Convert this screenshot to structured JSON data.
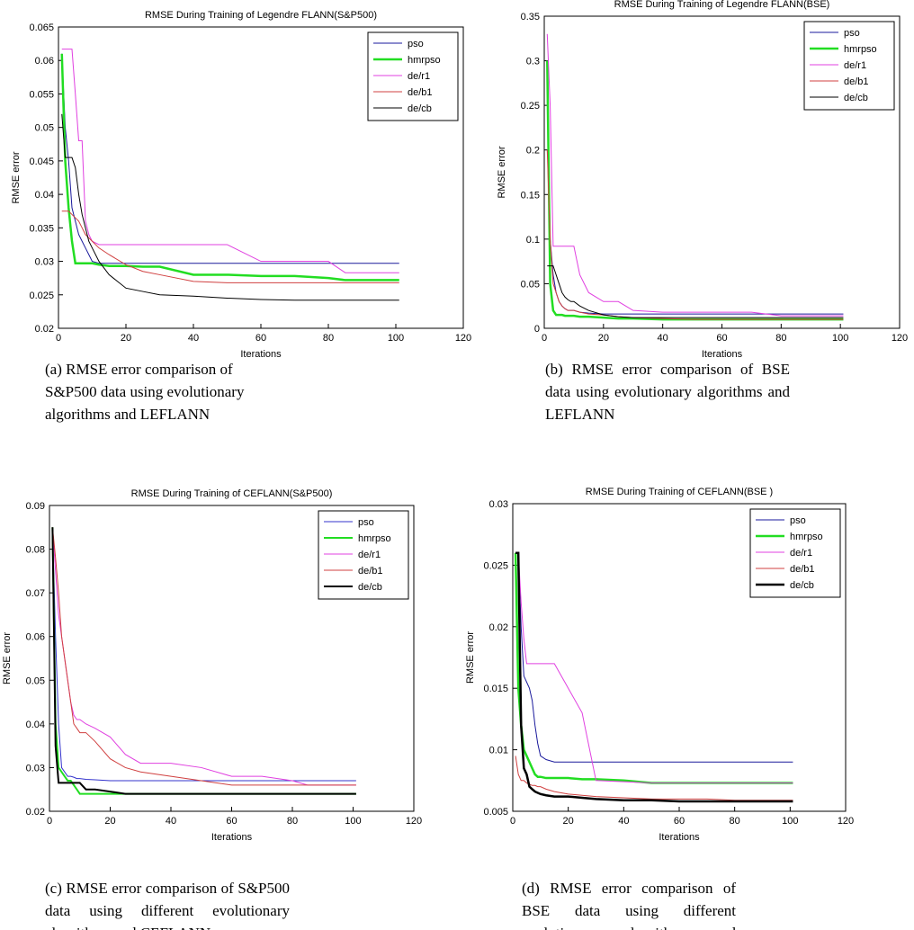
{
  "chart_data": [
    {
      "type": "line",
      "title": "RMSE During Training of Legendre FLANN(S&P500)",
      "xlabel": "Iterations",
      "ylabel": "RMSE error",
      "caption": "(a) RMSE error comparison of S&P500 data using evolutionary algorithms and LEFLANN",
      "x": [
        1,
        2,
        3,
        4,
        5,
        6,
        7,
        8,
        9,
        10,
        12,
        15,
        20,
        25,
        30,
        40,
        50,
        60,
        70,
        80,
        85,
        90,
        100,
        101
      ],
      "xlim": [
        0,
        120
      ],
      "xticks": [
        0,
        20,
        40,
        60,
        80,
        100,
        120
      ],
      "ylim": [
        0.02,
        0.065
      ],
      "yticks": [
        0.02,
        0.025,
        0.03,
        0.035,
        0.04,
        0.045,
        0.05,
        0.055,
        0.06,
        0.065
      ],
      "legend": "upper right",
      "series": [
        {
          "name": "pso",
          "color": "#1a1a9c",
          "width": 1,
          "values": [
            0.061,
            0.05,
            0.045,
            0.038,
            0.036,
            0.034,
            0.033,
            0.032,
            0.031,
            0.03,
            0.0297,
            0.0297,
            0.0297,
            0.0297,
            0.0297,
            0.0297,
            0.0297,
            0.0297,
            0.0297,
            0.0297,
            0.0297,
            0.0297,
            0.0297,
            0.0297
          ]
        },
        {
          "name": "hmrpso",
          "color": "#22dd22",
          "width": 2.5,
          "values": [
            0.061,
            0.045,
            0.038,
            0.033,
            0.0297,
            0.0297,
            0.0297,
            0.0297,
            0.0297,
            0.0297,
            0.0295,
            0.0293,
            0.0293,
            0.0292,
            0.0292,
            0.028,
            0.028,
            0.0278,
            0.0278,
            0.0275,
            0.0272,
            0.0272,
            0.0272,
            0.0272
          ]
        },
        {
          "name": "de/r1",
          "color": "#e040e0",
          "width": 1,
          "values": [
            0.0617,
            0.0617,
            0.0617,
            0.0617,
            0.055,
            0.048,
            0.048,
            0.036,
            0.034,
            0.033,
            0.0325,
            0.0325,
            0.0325,
            0.0325,
            0.0325,
            0.0325,
            0.0325,
            0.03,
            0.03,
            0.03,
            0.0283,
            0.0283,
            0.0283,
            0.0283
          ]
        },
        {
          "name": "de/b1",
          "color": "#d04040",
          "width": 1,
          "values": [
            0.0375,
            0.0375,
            0.0375,
            0.037,
            0.0365,
            0.036,
            0.035,
            0.034,
            0.0335,
            0.033,
            0.032,
            0.031,
            0.0295,
            0.0285,
            0.028,
            0.027,
            0.0268,
            0.0268,
            0.0268,
            0.0268,
            0.0268,
            0.0268,
            0.0268,
            0.0268
          ]
        },
        {
          "name": "de/cb",
          "color": "#000000",
          "width": 1,
          "values": [
            0.052,
            0.0455,
            0.0455,
            0.0455,
            0.044,
            0.04,
            0.037,
            0.035,
            0.033,
            0.032,
            0.03,
            0.028,
            0.026,
            0.0255,
            0.025,
            0.0248,
            0.0245,
            0.0243,
            0.0242,
            0.0242,
            0.0242,
            0.0242,
            0.0242,
            0.0242
          ]
        }
      ]
    },
    {
      "type": "line",
      "title": "RMSE During Training of Legendre FLANN(BSE)",
      "xlabel": "Iterations",
      "ylabel": "RMSE error",
      "caption": "(b) RMSE error comparison of BSE data using evolutionary algorithms and LEFLANN",
      "x": [
        1,
        2,
        3,
        4,
        5,
        6,
        7,
        8,
        9,
        10,
        12,
        15,
        20,
        25,
        30,
        40,
        50,
        60,
        70,
        80,
        85,
        90,
        100,
        101
      ],
      "xlim": [
        0,
        120
      ],
      "xticks": [
        0,
        20,
        40,
        60,
        80,
        100,
        120
      ],
      "ylim": [
        0,
        0.35
      ],
      "yticks": [
        0,
        0.05,
        0.1,
        0.15,
        0.2,
        0.25,
        0.3,
        0.35
      ],
      "legend": "upper right",
      "series": [
        {
          "name": "pso",
          "color": "#1a1a9c",
          "width": 1,
          "values": [
            0.3,
            0.1,
            0.06,
            0.04,
            0.03,
            0.025,
            0.022,
            0.02,
            0.02,
            0.02,
            0.018,
            0.017,
            0.016,
            0.016,
            0.016,
            0.016,
            0.016,
            0.016,
            0.016,
            0.016,
            0.016,
            0.016,
            0.016,
            0.016
          ]
        },
        {
          "name": "hmrpso",
          "color": "#22dd22",
          "width": 2.5,
          "values": [
            0.3,
            0.05,
            0.02,
            0.015,
            0.015,
            0.015,
            0.014,
            0.014,
            0.014,
            0.014,
            0.013,
            0.013,
            0.012,
            0.011,
            0.011,
            0.01,
            0.01,
            0.01,
            0.01,
            0.01,
            0.01,
            0.01,
            0.01,
            0.01
          ]
        },
        {
          "name": "de/r1",
          "color": "#e040e0",
          "width": 1,
          "values": [
            0.33,
            0.25,
            0.092,
            0.092,
            0.092,
            0.092,
            0.092,
            0.092,
            0.092,
            0.092,
            0.06,
            0.04,
            0.03,
            0.03,
            0.02,
            0.018,
            0.018,
            0.018,
            0.018,
            0.014,
            0.014,
            0.014,
            0.014,
            0.014
          ]
        },
        {
          "name": "de/b1",
          "color": "#d04040",
          "width": 1,
          "values": [
            0.2,
            0.1,
            0.05,
            0.04,
            0.03,
            0.025,
            0.022,
            0.02,
            0.02,
            0.02,
            0.018,
            0.016,
            0.015,
            0.013,
            0.012,
            0.011,
            0.01,
            0.01,
            0.01,
            0.01,
            0.01,
            0.01,
            0.01,
            0.01
          ]
        },
        {
          "name": "de/cb",
          "color": "#000000",
          "width": 1,
          "values": [
            0.07,
            0.07,
            0.07,
            0.06,
            0.05,
            0.04,
            0.035,
            0.032,
            0.03,
            0.03,
            0.025,
            0.02,
            0.015,
            0.013,
            0.012,
            0.012,
            0.012,
            0.012,
            0.012,
            0.012,
            0.012,
            0.012,
            0.012,
            0.012
          ]
        }
      ]
    },
    {
      "type": "line",
      "title": "RMSE During Training of CEFLANN(S&P500)",
      "xlabel": "Iterations",
      "ylabel": "RMSE error",
      "caption": "(c) RMSE error comparison of S&P500 data using different evolutionary algorithms and CEFLANN",
      "x": [
        1,
        2,
        3,
        4,
        5,
        6,
        7,
        8,
        9,
        10,
        12,
        15,
        20,
        25,
        30,
        40,
        50,
        60,
        70,
        80,
        85,
        90,
        100,
        101
      ],
      "xlim": [
        0,
        120
      ],
      "xticks": [
        0,
        20,
        40,
        60,
        80,
        100,
        120
      ],
      "ylim": [
        0.02,
        0.09
      ],
      "yticks": [
        0.02,
        0.03,
        0.04,
        0.05,
        0.06,
        0.07,
        0.08,
        0.09
      ],
      "legend": "upper right",
      "series": [
        {
          "name": "pso",
          "color": "#3333cc",
          "width": 1,
          "values": [
            0.085,
            0.06,
            0.04,
            0.03,
            0.029,
            0.028,
            0.028,
            0.0278,
            0.0275,
            0.0275,
            0.0273,
            0.0272,
            0.027,
            0.027,
            0.027,
            0.027,
            0.027,
            0.027,
            0.027,
            0.027,
            0.027,
            0.027,
            0.027,
            0.027
          ]
        },
        {
          "name": "hmrpso",
          "color": "#22dd22",
          "width": 2,
          "values": [
            0.085,
            0.04,
            0.03,
            0.029,
            0.028,
            0.027,
            0.027,
            0.026,
            0.025,
            0.024,
            0.024,
            0.024,
            0.024,
            0.024,
            0.024,
            0.024,
            0.024,
            0.024,
            0.024,
            0.024,
            0.024,
            0.024,
            0.024,
            0.024
          ]
        },
        {
          "name": "de/r1",
          "color": "#e040e0",
          "width": 1,
          "values": [
            0.085,
            0.075,
            0.065,
            0.06,
            0.055,
            0.05,
            0.045,
            0.042,
            0.041,
            0.041,
            0.04,
            0.039,
            0.037,
            0.033,
            0.031,
            0.031,
            0.03,
            0.028,
            0.028,
            0.027,
            0.026,
            0.026,
            0.026,
            0.026
          ]
        },
        {
          "name": "de/b1",
          "color": "#d04040",
          "width": 1,
          "values": [
            0.085,
            0.078,
            0.07,
            0.06,
            0.055,
            0.05,
            0.045,
            0.04,
            0.039,
            0.038,
            0.038,
            0.036,
            0.032,
            0.03,
            0.029,
            0.028,
            0.027,
            0.026,
            0.026,
            0.026,
            0.026,
            0.026,
            0.026,
            0.026
          ]
        },
        {
          "name": "de/cb",
          "color": "#000000",
          "width": 2,
          "values": [
            0.085,
            0.035,
            0.0265,
            0.0265,
            0.0265,
            0.0265,
            0.0265,
            0.0265,
            0.0265,
            0.0265,
            0.025,
            0.025,
            0.0245,
            0.024,
            0.024,
            0.024,
            0.024,
            0.024,
            0.024,
            0.024,
            0.024,
            0.024,
            0.024,
            0.024
          ]
        }
      ]
    },
    {
      "type": "line",
      "title": "RMSE During Training of CEFLANN(BSE )",
      "xlabel": "Iterations",
      "ylabel": "RMSE error",
      "caption": "(d) RMSE error comparison of BSE data using different evolutionary algorithms and CEFLANN",
      "x": [
        1,
        2,
        3,
        4,
        5,
        6,
        7,
        8,
        9,
        10,
        12,
        15,
        20,
        25,
        30,
        40,
        50,
        60,
        70,
        80,
        85,
        90,
        100,
        101
      ],
      "xlim": [
        0,
        120
      ],
      "xticks": [
        0,
        20,
        40,
        60,
        80,
        100,
        120
      ],
      "ylim": [
        0.005,
        0.03
      ],
      "yticks": [
        0.005,
        0.01,
        0.015,
        0.02,
        0.025,
        0.03
      ],
      "legend": "upper right",
      "series": [
        {
          "name": "pso",
          "color": "#1a1a9c",
          "width": 1,
          "values": [
            0.026,
            0.026,
            0.02,
            0.016,
            0.0155,
            0.015,
            0.014,
            0.012,
            0.0105,
            0.0095,
            0.0092,
            0.009,
            0.009,
            0.009,
            0.009,
            0.009,
            0.009,
            0.009,
            0.009,
            0.009,
            0.009,
            0.009,
            0.009,
            0.009
          ]
        },
        {
          "name": "hmrpso",
          "color": "#22dd22",
          "width": 2.5,
          "values": [
            0.026,
            0.015,
            0.012,
            0.01,
            0.0095,
            0.009,
            0.0085,
            0.008,
            0.0078,
            0.0078,
            0.0077,
            0.0077,
            0.0077,
            0.0076,
            0.0076,
            0.0075,
            0.0073,
            0.0073,
            0.0073,
            0.0073,
            0.0073,
            0.0073,
            0.0073,
            0.0073
          ]
        },
        {
          "name": "de/r1",
          "color": "#e040e0",
          "width": 1,
          "values": [
            0.026,
            0.026,
            0.022,
            0.019,
            0.017,
            0.017,
            0.017,
            0.017,
            0.017,
            0.017,
            0.017,
            0.017,
            0.015,
            0.013,
            0.0075,
            0.0074,
            0.0073,
            0.0073,
            0.0073,
            0.0073,
            0.0073,
            0.0073,
            0.0073,
            0.0073
          ]
        },
        {
          "name": "de/b1",
          "color": "#d04040",
          "width": 1,
          "values": [
            0.0095,
            0.008,
            0.0075,
            0.0075,
            0.0073,
            0.0072,
            0.0071,
            0.0071,
            0.007,
            0.007,
            0.0068,
            0.0066,
            0.0064,
            0.0063,
            0.0062,
            0.0061,
            0.006,
            0.006,
            0.006,
            0.0059,
            0.0059,
            0.0059,
            0.0059,
            0.0059
          ]
        },
        {
          "name": "de/cb",
          "color": "#000000",
          "width": 2.5,
          "values": [
            0.026,
            0.026,
            0.012,
            0.0085,
            0.008,
            0.007,
            0.0068,
            0.0066,
            0.0065,
            0.0064,
            0.0063,
            0.0062,
            0.0062,
            0.0061,
            0.006,
            0.0059,
            0.0059,
            0.0058,
            0.0058,
            0.0058,
            0.0058,
            0.0058,
            0.0058,
            0.0058
          ]
        }
      ]
    }
  ]
}
